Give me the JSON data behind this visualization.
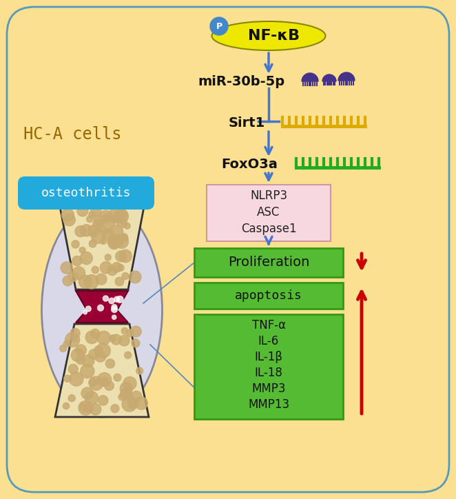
{
  "bg_color": "#FAE090",
  "border_color": "#5599BB",
  "fig_width": 6.62,
  "fig_height": 7.24,
  "hca_label": "HC-A cells",
  "osteothritis_label": "osteothritis",
  "nfkb_label": "NF-κB",
  "nfkb_bg": "#EEE800",
  "nfkb_p_color": "#4488CC",
  "mir_label": "miR-30b-5p",
  "sirt1_label": "Sirt1",
  "foxo3a_label": "FoxO3a",
  "inflammasome_lines": [
    "NLRP3",
    "ASC",
    "Caspase1"
  ],
  "inflammasome_bg": "#F8D8E0",
  "inflammasome_border": "#CC9999",
  "proliferation_label": "Proliferation",
  "proliferation_bg": "#55BB33",
  "proliferation_border": "#339911",
  "apoptosis_label": "apoptosis",
  "apoptosis_bg": "#55BB33",
  "apoptosis_border": "#339911",
  "cytokines": [
    "TNF-α",
    "IL-6",
    "IL-1β",
    "IL-18",
    "MMP3",
    "MMP13"
  ],
  "cytokines_bg": "#55BB33",
  "cytokines_border": "#339911",
  "arrow_color": "#4477CC",
  "red_arrow_color": "#CC0000",
  "miR_mushroom_color": "#443388",
  "sirt1_comb_color": "#DDAA00",
  "foxo3a_comb_color": "#22AA22",
  "bone_fill": "#EDE0B0",
  "bone_edge": "#333333",
  "bone_dot_color": "#C8AA70",
  "cartilage_color": "#990033",
  "capsule_color": "#AAAACC",
  "osteothritis_bg": "#22AADD"
}
